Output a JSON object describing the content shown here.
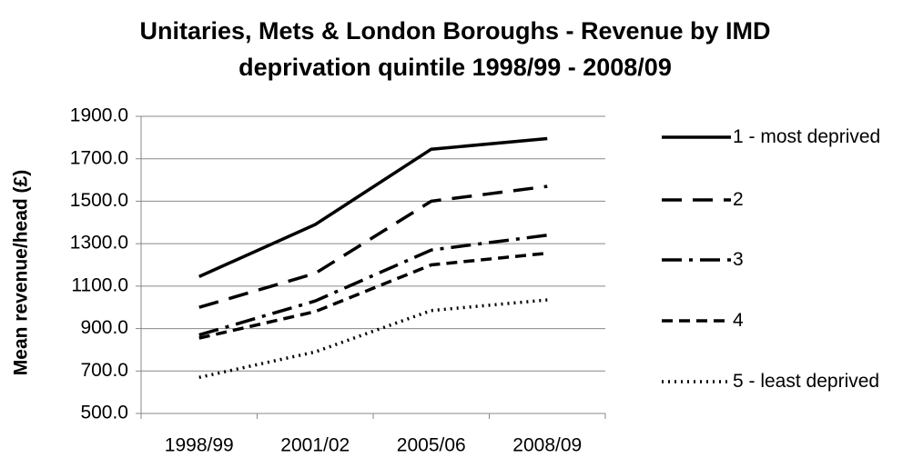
{
  "chart_data": {
    "type": "line",
    "title": "Unitaries, Mets & London Boroughs - Revenue by IMD deprivation quintile 1998/99 - 2008/09",
    "y_label": "Mean revenue/head (£)",
    "categories": [
      "1998/99",
      "2001/02",
      "2005/06",
      "2008/09"
    ],
    "series": [
      {
        "name": "1 - most deprived",
        "color": "#000000",
        "linestyle": "solid",
        "values": [
          1145,
          1390,
          1745,
          1795
        ]
      },
      {
        "name": "2",
        "color": "#000000",
        "linestyle": "dashed",
        "values": [
          1000,
          1160,
          1500,
          1570
        ]
      },
      {
        "name": "3",
        "color": "#000000",
        "linestyle": "dashdot",
        "values": [
          870,
          1030,
          1270,
          1340
        ]
      },
      {
        "name": "4",
        "color": "#000000",
        "linestyle": "shortdash",
        "values": [
          855,
          980,
          1200,
          1255
        ]
      },
      {
        "name": "5 - least deprived",
        "color": "#000000",
        "linestyle": "dotted",
        "values": [
          670,
          790,
          985,
          1035
        ]
      }
    ],
    "ylim": [
      500,
      1900
    ],
    "yticks": [
      {
        "value": 500,
        "label": "500.0"
      },
      {
        "value": 700,
        "label": "700.0"
      },
      {
        "value": 900,
        "label": "900.0"
      },
      {
        "value": 1100,
        "label": "1100.0"
      },
      {
        "value": 1300,
        "label": "1300.0"
      },
      {
        "value": 1500,
        "label": "1500.0"
      },
      {
        "value": 1700,
        "label": "1700.0"
      },
      {
        "value": 1900,
        "label": "1900.0"
      }
    ],
    "grid": true,
    "legend": "right"
  }
}
